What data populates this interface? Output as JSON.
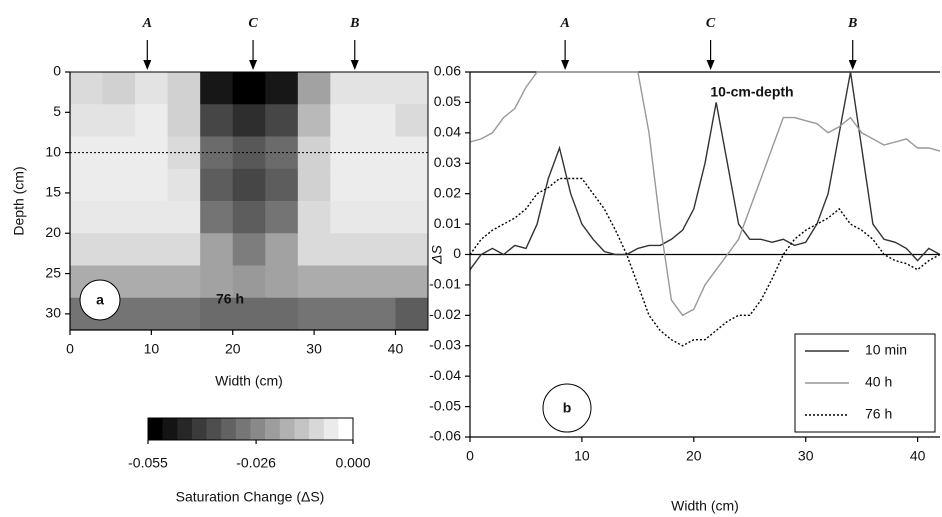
{
  "chart_data": [
    {
      "type": "heatmap",
      "xlabel": "Width (cm)",
      "ylabel": "Depth (cm)",
      "xlim": [
        0,
        44
      ],
      "ylim": [
        32,
        0
      ],
      "xticks": [
        0,
        10,
        20,
        30,
        40
      ],
      "yticks": [
        0,
        5,
        10,
        15,
        20,
        25,
        30
      ],
      "xbins": [
        0,
        4,
        8,
        12,
        16,
        20,
        24,
        28,
        32,
        36,
        40,
        44
      ],
      "ybins": [
        0,
        4,
        8,
        12,
        16,
        20,
        24,
        28,
        32
      ],
      "values": [
        [
          -0.008,
          -0.01,
          -0.006,
          -0.01,
          -0.05,
          -0.055,
          -0.05,
          -0.02,
          -0.006,
          -0.006,
          -0.006
        ],
        [
          -0.006,
          -0.006,
          -0.004,
          -0.01,
          -0.04,
          -0.045,
          -0.04,
          -0.015,
          -0.004,
          -0.004,
          -0.008
        ],
        [
          -0.004,
          -0.004,
          -0.004,
          -0.008,
          -0.032,
          -0.036,
          -0.032,
          -0.01,
          -0.004,
          -0.004,
          -0.004
        ],
        [
          -0.004,
          -0.004,
          -0.004,
          -0.006,
          -0.035,
          -0.04,
          -0.035,
          -0.01,
          -0.004,
          -0.004,
          -0.004
        ],
        [
          -0.005,
          -0.005,
          -0.005,
          -0.005,
          -0.03,
          -0.035,
          -0.03,
          -0.008,
          -0.005,
          -0.005,
          -0.005
        ],
        [
          -0.008,
          -0.008,
          -0.008,
          -0.008,
          -0.02,
          -0.028,
          -0.02,
          -0.008,
          -0.008,
          -0.008,
          -0.008
        ],
        [
          -0.018,
          -0.018,
          -0.018,
          -0.018,
          -0.02,
          -0.022,
          -0.02,
          -0.018,
          -0.018,
          -0.018,
          -0.018
        ],
        [
          -0.03,
          -0.03,
          -0.03,
          -0.03,
          -0.032,
          -0.032,
          -0.032,
          -0.03,
          -0.03,
          -0.03,
          -0.035
        ]
      ],
      "clim": [
        -0.055,
        0
      ],
      "hline": 10,
      "markers": [
        {
          "label": "A",
          "x": 9.5
        },
        {
          "label": "C",
          "x": 22.5
        },
        {
          "label": "B",
          "x": 35
        }
      ],
      "panel_label": "a",
      "annotation": "76 h",
      "colorbar": {
        "ticks": [
          -0.055,
          -0.026,
          {
            "value": 0,
            "label": "0.000"
          }
        ],
        "label": "Saturation Change (ΔS)"
      }
    },
    {
      "type": "line",
      "xlabel": "Width (cm)",
      "ylabel": "ΔS",
      "xlim": [
        0,
        42
      ],
      "ylim": [
        -0.06,
        0.06
      ],
      "xticks": [
        0,
        10,
        20,
        30,
        40
      ],
      "yticks": [
        -0.06,
        -0.05,
        -0.04,
        -0.03,
        -0.02,
        -0.01,
        0,
        0.01,
        0.02,
        0.03,
        0.04,
        0.05,
        0.06
      ],
      "x": [
        0,
        1,
        2,
        3,
        4,
        5,
        6,
        7,
        8,
        9,
        10,
        11,
        12,
        13,
        14,
        15,
        16,
        17,
        18,
        19,
        20,
        21,
        22,
        23,
        24,
        25,
        26,
        27,
        28,
        29,
        30,
        31,
        32,
        33,
        34,
        35,
        36,
        37,
        38,
        39,
        40,
        41,
        42
      ],
      "series": [
        {
          "name": "10 min",
          "color": "#333333",
          "dash": "solid",
          "values": [
            -0.005,
            0,
            0.002,
            0,
            0.003,
            0.002,
            0.01,
            0.025,
            0.035,
            0.02,
            0.01,
            0.005,
            0.001,
            0,
            0,
            0.002,
            0.003,
            0.003,
            0.005,
            0.008,
            0.015,
            0.03,
            0.05,
            0.03,
            0.01,
            0.005,
            0.005,
            0.004,
            0.005,
            0.003,
            0.004,
            0.01,
            0.02,
            0.04,
            0.06,
            0.035,
            0.01,
            0.005,
            0.004,
            0.002,
            -0.002,
            0.002,
            0
          ]
        },
        {
          "name": "40 h",
          "color": "#999999",
          "dash": "solid",
          "values": [
            0.037,
            0.038,
            0.04,
            0.045,
            0.048,
            0.055,
            0.06,
            0.06,
            0.06,
            0.06,
            0.06,
            0.06,
            0.06,
            0.06,
            0.06,
            0.06,
            0.04,
            0.01,
            -0.015,
            -0.02,
            -0.018,
            -0.01,
            -0.005,
            0,
            0.005,
            0.015,
            0.025,
            0.035,
            0.045,
            0.045,
            0.044,
            0.043,
            0.04,
            0.042,
            0.045,
            0.04,
            0.038,
            0.036,
            0.037,
            0.038,
            0.035,
            0.035,
            0.034
          ]
        },
        {
          "name": "76 h",
          "color": "#000000",
          "dash": "dotted",
          "values": [
            0,
            0.005,
            0.008,
            0.01,
            0.012,
            0.015,
            0.02,
            0.022,
            0.025,
            0.025,
            0.025,
            0.02,
            0.015,
            0.008,
            0,
            -0.01,
            -0.02,
            -0.025,
            -0.028,
            -0.03,
            -0.028,
            -0.028,
            -0.025,
            -0.022,
            -0.02,
            -0.02,
            -0.015,
            -0.008,
            0,
            0.005,
            0.008,
            0.01,
            0.012,
            0.015,
            0.01,
            0.008,
            0.005,
            0,
            -0.002,
            -0.003,
            -0.005,
            -0.002,
            0
          ]
        }
      ],
      "markers": [
        {
          "label": "A",
          "x": 8.5
        },
        {
          "label": "C",
          "x": 21.5
        },
        {
          "label": "B",
          "x": 34.2
        }
      ],
      "panel_label": "b",
      "annotation": "10-cm-depth",
      "legend": "lower right"
    }
  ]
}
